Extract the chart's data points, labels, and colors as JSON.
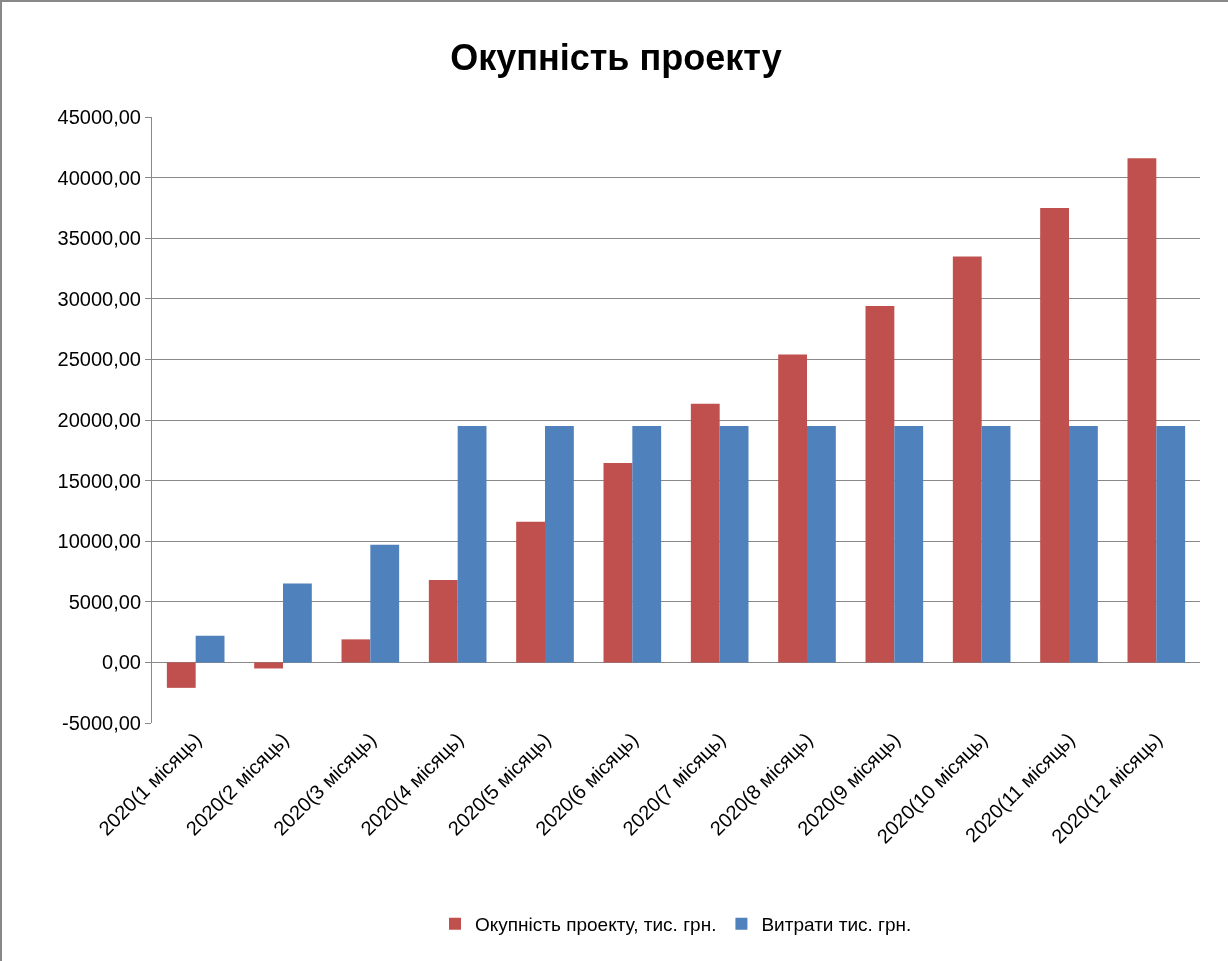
{
  "chart_data": {
    "type": "bar",
    "title": "Окупність проекту",
    "categories": [
      "2020(1 місяць)",
      "2020(2 місяць)",
      "2020(3 місяць)",
      "2020(4 місяць)",
      "2020(5 місяць)",
      "2020(6 місяць)",
      "2020(7 місяць)",
      "2020(8 місяць)",
      "2020(9 місяць)",
      "2020(10 місяць)",
      "2020(11 місяць)",
      "2020(12 місяць)"
    ],
    "series": [
      {
        "name": "Окупність проекту, тис. грн.",
        "color": "#c0504d",
        "values": [
          -2100,
          -500,
          1900,
          6800,
          11600,
          16450,
          21350,
          25400,
          29400,
          33500,
          37500,
          41600
        ]
      },
      {
        "name": "Витрати тис. грн.",
        "color": "#4f81bd",
        "values": [
          2200,
          6500,
          9700,
          19500,
          19500,
          19500,
          19500,
          19500,
          19500,
          19500,
          19500,
          19500
        ]
      }
    ],
    "ylim": [
      -5000,
      45000
    ],
    "yticks": [
      {
        "value": -5000,
        "label": "-5000,00"
      },
      {
        "value": 0,
        "label": "0,00"
      },
      {
        "value": 5000,
        "label": "5000,00"
      },
      {
        "value": 10000,
        "label": "10000,00"
      },
      {
        "value": 15000,
        "label": "15000,00"
      },
      {
        "value": 20000,
        "label": "20000,00"
      },
      {
        "value": 25000,
        "label": "25000,00"
      },
      {
        "value": 30000,
        "label": "30000,00"
      },
      {
        "value": 35000,
        "label": "35000,00"
      },
      {
        "value": 40000,
        "label": "40000,00"
      },
      {
        "value": 45000,
        "label": "45000,00"
      }
    ],
    "grid": "y",
    "legend": "bottom"
  }
}
